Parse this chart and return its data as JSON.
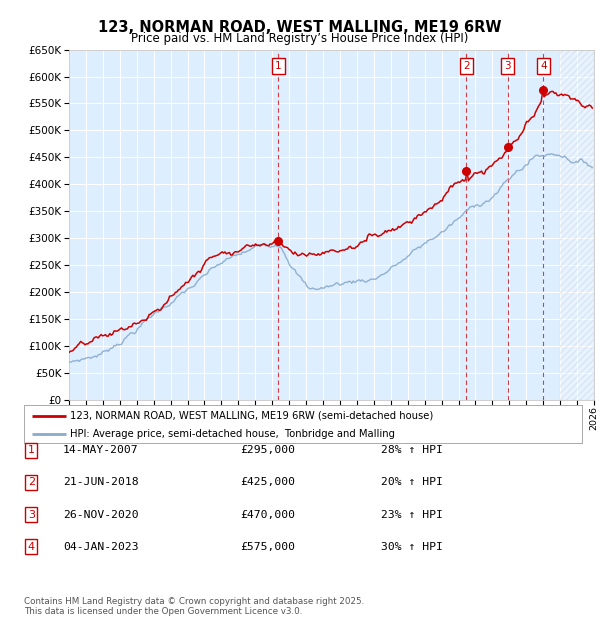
{
  "title": "123, NORMAN ROAD, WEST MALLING, ME19 6RW",
  "subtitle": "Price paid vs. HM Land Registry’s House Price Index (HPI)",
  "legend_line1": "123, NORMAN ROAD, WEST MALLING, ME19 6RW (semi-detached house)",
  "legend_line2": "HPI: Average price, semi-detached house,  Tonbridge and Malling",
  "xlim": [
    1995,
    2026
  ],
  "ylim": [
    0,
    650000
  ],
  "yticks": [
    0,
    50000,
    100000,
    150000,
    200000,
    250000,
    300000,
    350000,
    400000,
    450000,
    500000,
    550000,
    600000,
    650000
  ],
  "ytick_labels": [
    "£0",
    "£50K",
    "£100K",
    "£150K",
    "£200K",
    "£250K",
    "£300K",
    "£350K",
    "£400K",
    "£450K",
    "£500K",
    "£550K",
    "£600K",
    "£650K"
  ],
  "sale_markers": [
    {
      "num": 1,
      "date": "14-MAY-2007",
      "price": 295000,
      "hpi_pct": "28%",
      "x": 2007.37
    },
    {
      "num": 2,
      "date": "21-JUN-2018",
      "price": 425000,
      "hpi_pct": "20%",
      "x": 2018.47
    },
    {
      "num": 3,
      "date": "26-NOV-2020",
      "price": 470000,
      "hpi_pct": "23%",
      "x": 2020.9
    },
    {
      "num": 4,
      "date": "04-JAN-2023",
      "price": 575000,
      "hpi_pct": "30%",
      "x": 2023.01
    }
  ],
  "footnote1": "Contains HM Land Registry data © Crown copyright and database right 2025.",
  "footnote2": "This data is licensed under the Open Government Licence v3.0.",
  "red_color": "#cc0000",
  "blue_color": "#88aacc",
  "bg_color": "#ddeeff",
  "grid_color": "#ffffff",
  "n_points": 360,
  "x_start": 1995.0,
  "x_end": 2025.9
}
